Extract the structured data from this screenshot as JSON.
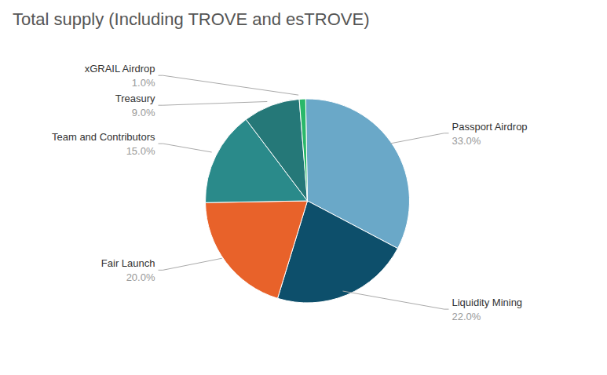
{
  "chart_data": {
    "type": "pie",
    "title": "Total supply (Including TROVE and esTROVE)",
    "categories": [
      "Passport Airdrop",
      "Liquidity Mining",
      "Fair Launch",
      "Team and Contributors",
      "Treasury",
      "xGRAIL Airdrop"
    ],
    "values": [
      33.0,
      22.0,
      20.0,
      15.0,
      9.0,
      1.0
    ],
    "value_labels": [
      "33.0%",
      "22.0%",
      "20.0%",
      "15.0%",
      "9.0%",
      "1.0%"
    ],
    "colors": [
      "#6AA8C8",
      "#0D4F6B",
      "#E8622A",
      "#2A8A8A",
      "#257878",
      "#2AB86A"
    ],
    "data_labels": true
  }
}
